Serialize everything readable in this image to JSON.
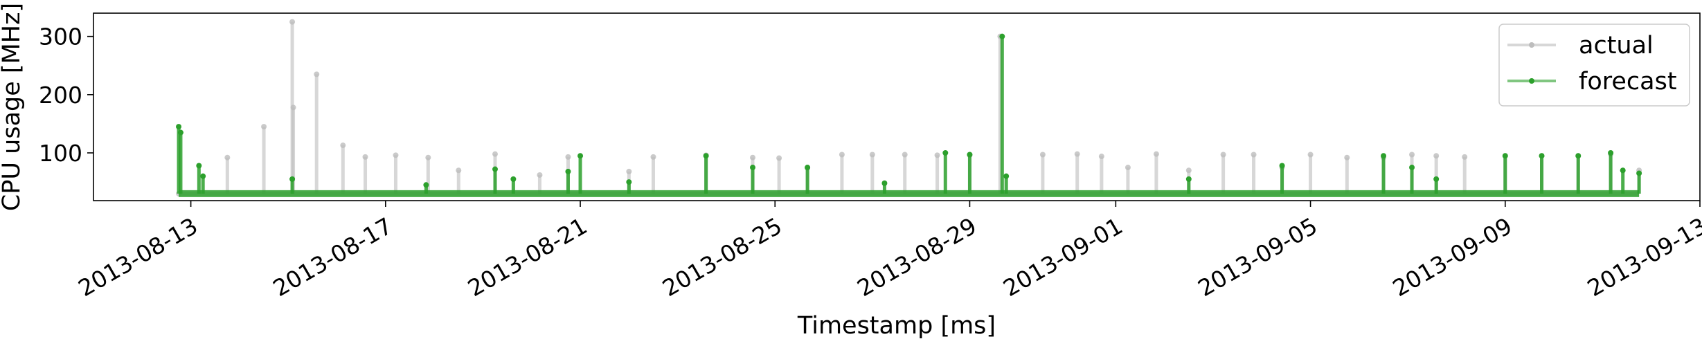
{
  "chart_data": {
    "type": "line",
    "xlabel": "Timestamp [ms]",
    "ylabel": "CPU usage [MHz]",
    "xlim": [
      "2013-08-11",
      "2013-09-13"
    ],
    "ylim": [
      18,
      340
    ],
    "x_ticks": [
      "2013-08-13",
      "2013-08-17",
      "2013-08-21",
      "2013-08-25",
      "2013-08-29",
      "2013-09-01",
      "2013-09-05",
      "2013-09-09",
      "2013-09-13"
    ],
    "y_ticks": [
      100,
      200,
      300
    ],
    "baseline": 30,
    "legend_position": "top-right",
    "grid": false,
    "series": [
      {
        "name": "actual",
        "color": "#bdbdbd",
        "peaks": [
          [
            "2013-08-12 18:00",
            30
          ],
          [
            "2013-08-13 18:00",
            92
          ],
          [
            "2013-08-14 12:00",
            145
          ],
          [
            "2013-08-15 02:00",
            325
          ],
          [
            "2013-08-15 02:30",
            178
          ],
          [
            "2013-08-15 14:00",
            235
          ],
          [
            "2013-08-16 03:00",
            113
          ],
          [
            "2013-08-16 14:00",
            93
          ],
          [
            "2013-08-17 05:00",
            96
          ],
          [
            "2013-08-17 21:00",
            92
          ],
          [
            "2013-08-18 12:00",
            70
          ],
          [
            "2013-08-19 06:00",
            98
          ],
          [
            "2013-08-20 04:00",
            62
          ],
          [
            "2013-08-20 18:00",
            93
          ],
          [
            "2013-08-22 00:00",
            68
          ],
          [
            "2013-08-22 12:00",
            93
          ],
          [
            "2013-08-23 14:00",
            96
          ],
          [
            "2013-08-24 13:00",
            92
          ],
          [
            "2013-08-25 02:00",
            91
          ],
          [
            "2013-08-25 16:00",
            74
          ],
          [
            "2013-08-26 09:00",
            97
          ],
          [
            "2013-08-27 00:00",
            97
          ],
          [
            "2013-08-27 16:00",
            97
          ],
          [
            "2013-08-28 08:00",
            96
          ],
          [
            "2013-08-29 00:00",
            96
          ],
          [
            "2013-08-29 15:00",
            300
          ],
          [
            "2013-08-30 12:00",
            97
          ],
          [
            "2013-08-31 05:00",
            98
          ],
          [
            "2013-08-31 17:00",
            94
          ],
          [
            "2013-09-01 06:00",
            75
          ],
          [
            "2013-09-01 20:00",
            98
          ],
          [
            "2013-09-02 12:00",
            70
          ],
          [
            "2013-09-03 05:00",
            97
          ],
          [
            "2013-09-03 20:00",
            97
          ],
          [
            "2013-09-04 10:00",
            75
          ],
          [
            "2013-09-05 00:00",
            97
          ],
          [
            "2013-09-05 18:00",
            92
          ],
          [
            "2013-09-06 12:00",
            92
          ],
          [
            "2013-09-07 02:00",
            97
          ],
          [
            "2013-09-07 14:00",
            95
          ],
          [
            "2013-09-08 04:00",
            93
          ],
          [
            "2013-09-09 00:00",
            95
          ],
          [
            "2013-09-09 18:00",
            95
          ],
          [
            "2013-09-10 12:00",
            95
          ],
          [
            "2013-09-11 04:00",
            98
          ],
          [
            "2013-09-11 18:00",
            70
          ]
        ]
      },
      {
        "name": "forecast",
        "color": "#2ca02c",
        "peaks": [
          [
            "2013-08-12 18:00",
            145
          ],
          [
            "2013-08-12 19:00",
            135
          ],
          [
            "2013-08-13 04:00",
            78
          ],
          [
            "2013-08-13 06:00",
            60
          ],
          [
            "2013-08-15 02:00",
            55
          ],
          [
            "2013-08-17 20:00",
            45
          ],
          [
            "2013-08-19 06:00",
            72
          ],
          [
            "2013-08-19 15:00",
            55
          ],
          [
            "2013-08-20 18:00",
            68
          ],
          [
            "2013-08-21 00:00",
            95
          ],
          [
            "2013-08-22 00:00",
            50
          ],
          [
            "2013-08-23 14:00",
            95
          ],
          [
            "2013-08-24 13:00",
            75
          ],
          [
            "2013-08-25 16:00",
            75
          ],
          [
            "2013-08-27 06:00",
            48
          ],
          [
            "2013-08-28 12:00",
            100
          ],
          [
            "2013-08-29 00:00",
            97
          ],
          [
            "2013-08-29 16:00",
            300
          ],
          [
            "2013-08-29 18:00",
            60
          ],
          [
            "2013-09-02 12:00",
            55
          ],
          [
            "2013-09-04 10:00",
            78
          ],
          [
            "2013-09-06 12:00",
            95
          ],
          [
            "2013-09-07 02:00",
            75
          ],
          [
            "2013-09-07 14:00",
            55
          ],
          [
            "2013-09-09 00:00",
            95
          ],
          [
            "2013-09-09 18:00",
            95
          ],
          [
            "2013-09-10 12:00",
            95
          ],
          [
            "2013-09-11 04:00",
            100
          ],
          [
            "2013-09-11 10:00",
            70
          ],
          [
            "2013-09-11 18:00",
            65
          ]
        ]
      }
    ]
  }
}
